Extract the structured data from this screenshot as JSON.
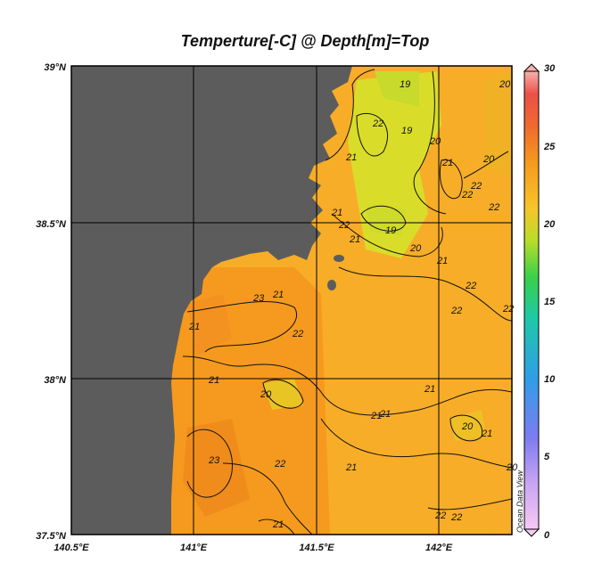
{
  "title": "Temperture[-C] @ Depth[m]=Top",
  "lat_labels": [
    "39°N",
    "38.5°N",
    "38°N",
    "37.5°N"
  ],
  "lon_labels": [
    "140.5°E",
    "141°E",
    "141.5°E",
    "142°E"
  ],
  "colorbar": {
    "ticks": [
      "30",
      "25",
      "20",
      "15",
      "10",
      "5",
      "0"
    ],
    "range": [
      0,
      30
    ],
    "watermark": "Ocean Data View"
  },
  "contour_labels": [
    "19",
    "22",
    "19",
    "20",
    "21",
    "20",
    "21",
    "22",
    "20",
    "22",
    "21",
    "22",
    "21",
    "19",
    "20",
    "21",
    "22",
    "22",
    "22",
    "23",
    "21",
    "22",
    "22",
    "21",
    "20",
    "21",
    "21",
    "20",
    "21",
    "21",
    "23",
    "22",
    "21",
    "21",
    "20",
    "22",
    "22",
    "21"
  ],
  "colors": {
    "land": "#5c5c5c",
    "sea_warm": "#f59a1e",
    "sea_mid": "#f7ad28",
    "sea_cool": "#d9dd2a"
  }
}
